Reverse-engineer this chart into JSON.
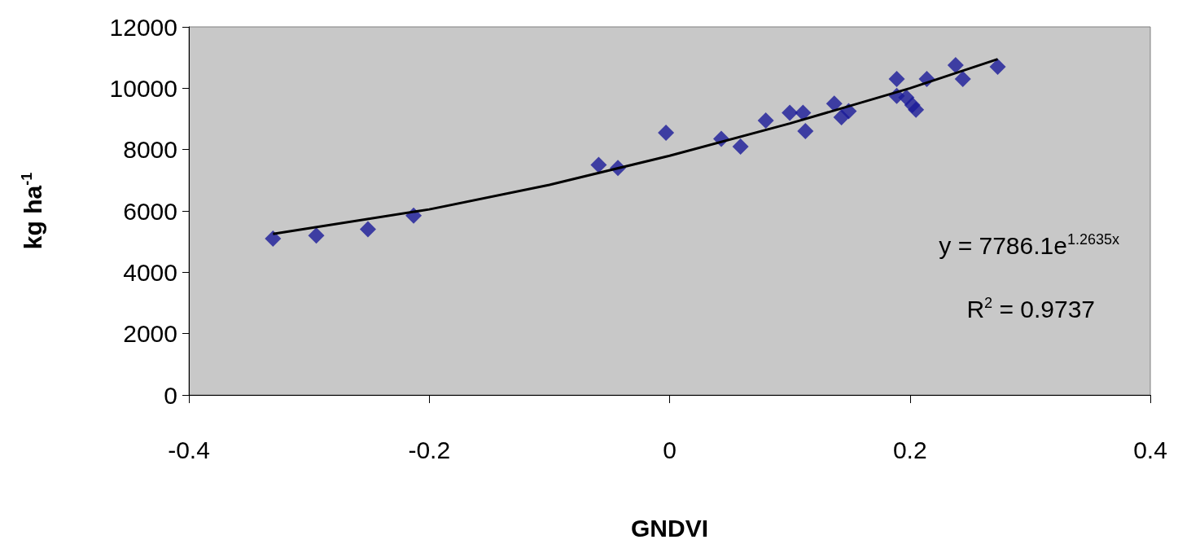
{
  "chart_data": {
    "type": "scatter",
    "xlabel": "GNDVI",
    "ylabel": "kg ha$^{-1}$",
    "xlim": [
      -0.4,
      0.4
    ],
    "xticks": [
      -0.4,
      -0.2,
      0,
      0.2,
      0.4
    ],
    "ylim": [
      0,
      12000
    ],
    "yticks": [
      0,
      2000,
      4000,
      6000,
      8000,
      10000,
      12000
    ],
    "grid": false,
    "marker": "diamond",
    "series": [
      {
        "color": "#1a1a99",
        "x": [
          -0.33,
          -0.294,
          -0.251,
          -0.213,
          -0.059,
          -0.043,
          -0.003,
          0.043,
          0.059,
          0.08,
          0.1,
          0.111,
          0.113,
          0.137,
          0.143,
          0.149,
          0.189,
          0.189,
          0.197,
          0.202,
          0.205,
          0.214,
          0.238,
          0.244,
          0.273
        ],
        "values": [
          5100,
          5200,
          5400,
          5850,
          7500,
          7400,
          8550,
          8350,
          8100,
          8950,
          9200,
          9200,
          8600,
          9500,
          9050,
          9250,
          10300,
          9750,
          9700,
          9450,
          9300,
          10300,
          10750,
          10300,
          10700
        ]
      },
      {
        "type": "line",
        "color": "#000000",
        "marker": "none",
        "line_style": "solid",
        "x": [
          -0.33,
          -0.2,
          -0.1,
          0,
          0.1,
          0.2,
          0.273
        ],
        "values": [
          5250,
          6050,
          6850,
          7800,
          8850,
          10000,
          10950
        ]
      }
    ],
    "annotations": [
      "y = 7786.1e$^{1.2635x}$",
      "R$^{2}$ = 0.9737"
    ]
  }
}
